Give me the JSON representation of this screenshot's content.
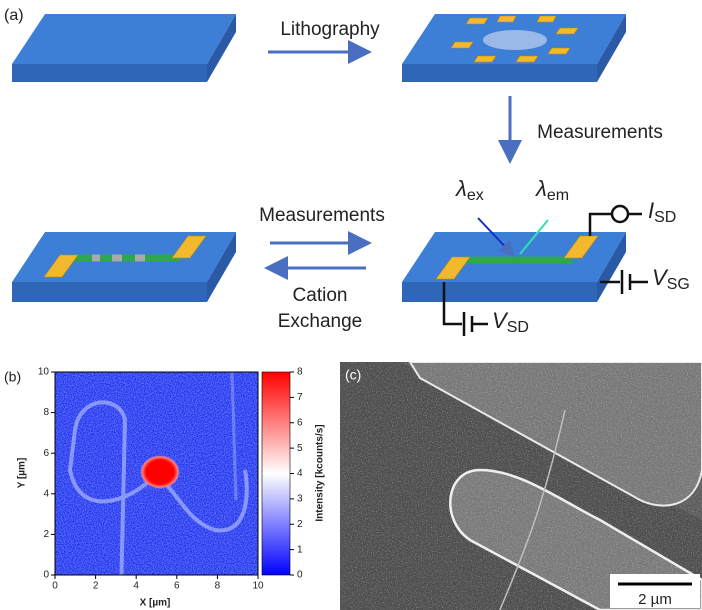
{
  "panel_a": {
    "label": "(a)",
    "step_1": "Lithography",
    "step_2": "Measurements",
    "step_3": "Measurements",
    "step_4_line_1": "Cation",
    "step_4_line_2": "Exchange",
    "lambda_ex": {
      "symbol": "λ",
      "sub": "ex"
    },
    "lambda_em": {
      "symbol": "λ",
      "sub": "em"
    },
    "i_sd": {
      "symbol": "I",
      "sub": "SD"
    },
    "v_sg": {
      "symbol": "V",
      "sub": "SG"
    },
    "v_sd": {
      "symbol": "V",
      "sub": "SD"
    }
  },
  "panel_b": {
    "label": "(b)",
    "x_label": "X [µm]",
    "y_label": "Y [µm]",
    "xlim": [
      0,
      10
    ],
    "ylim": [
      0,
      10
    ],
    "xticks": [
      0,
      2,
      4,
      6,
      8,
      10
    ],
    "yticks": [
      0,
      2,
      4,
      6,
      8,
      10
    ],
    "colorbar_label": "Intensity [kcounts/s]",
    "clim": [
      0,
      8
    ],
    "colorbar_ticks": [
      0,
      1,
      2,
      3,
      4,
      5,
      6,
      7,
      8
    ]
  },
  "panel_c": {
    "label": "(c)",
    "scale_bar": "2 µm"
  }
}
